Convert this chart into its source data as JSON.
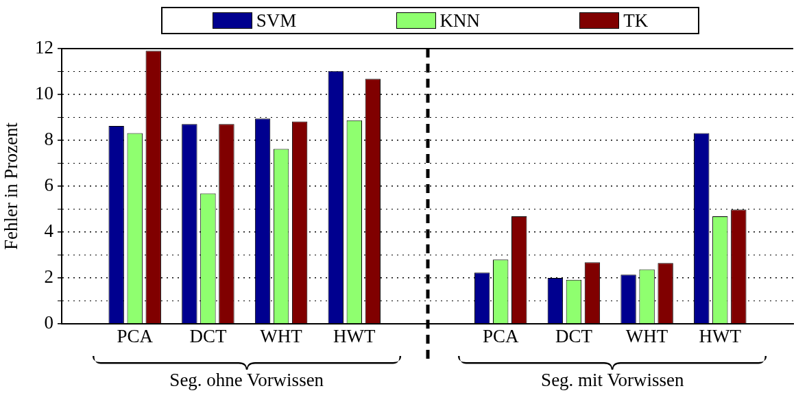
{
  "chart_data": {
    "type": "bar",
    "ylabel": "Fehler in Prozent",
    "categories": [
      null,
      "PCA",
      "DCT",
      "WHT",
      "HWT",
      null,
      "PCA",
      "DCT",
      "WHT",
      "HWT",
      null
    ],
    "series": [
      {
        "name": "SVM",
        "color": "#00008f",
        "values": [
          null,
          8.63,
          8.71,
          8.95,
          11.02,
          null,
          2.23,
          2.0,
          2.14,
          8.31,
          null
        ]
      },
      {
        "name": "KNN",
        "color": "#8fff6f",
        "values": [
          null,
          8.31,
          5.69,
          7.63,
          8.87,
          null,
          2.8,
          1.92,
          2.37,
          4.69,
          null
        ]
      },
      {
        "name": "TK",
        "color": "#800000",
        "values": [
          null,
          11.9,
          8.71,
          8.82,
          10.68,
          null,
          4.69,
          2.68,
          2.65,
          4.98,
          null
        ]
      }
    ],
    "ylim": [
      0,
      12
    ],
    "yticks": [
      0,
      {
        "value": 1,
        "label": null
      },
      2,
      {
        "value": 3,
        "label": null
      },
      4,
      {
        "value": 5,
        "label": null
      },
      6,
      {
        "value": 7,
        "label": null
      },
      8,
      {
        "value": 9,
        "label": null
      },
      10,
      {
        "value": 11,
        "label": null
      },
      12
    ],
    "grid": "y",
    "legend": "top",
    "annotations": [
      "Seg. ohne Vorwissen",
      "Seg. mit Vorwissen"
    ]
  }
}
